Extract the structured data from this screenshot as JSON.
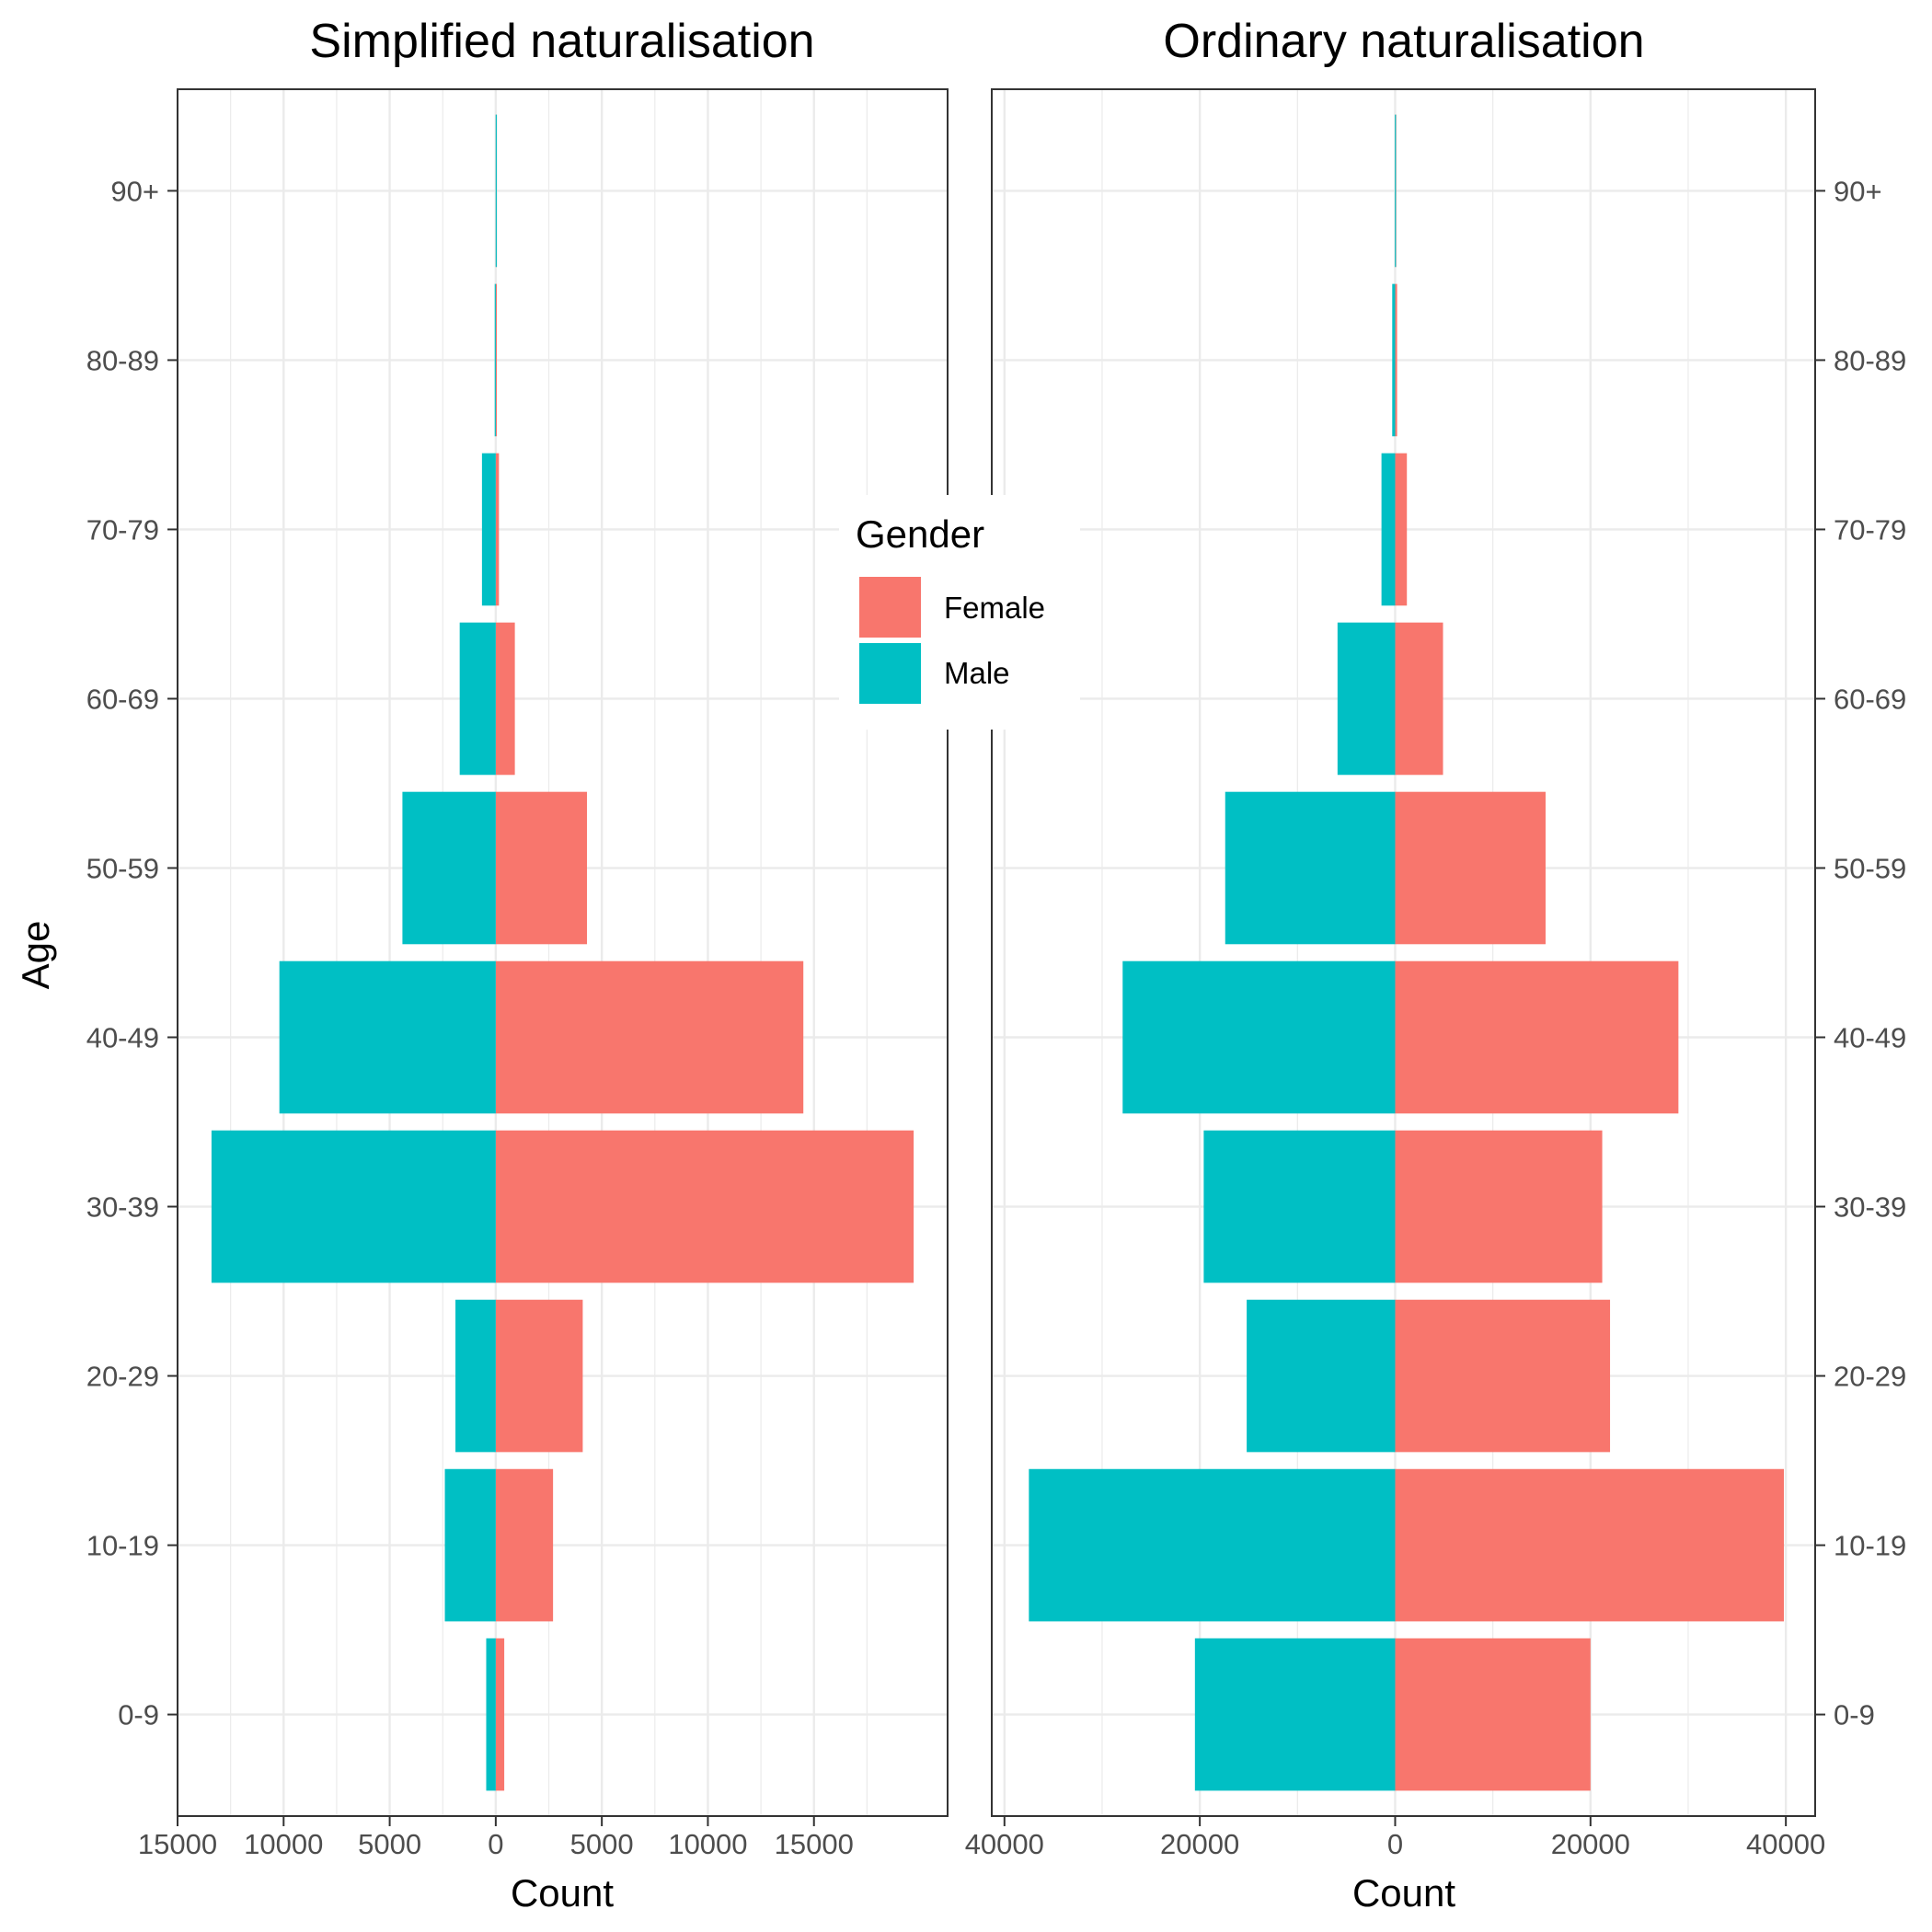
{
  "chart_data": {
    "type": "bar",
    "orientation": "horizontal",
    "y_label": "Age",
    "categories": [
      "0-9",
      "10-19",
      "20-29",
      "30-39",
      "40-49",
      "50-59",
      "60-69",
      "70-79",
      "80-89",
      "90+"
    ],
    "legend": {
      "title": "Gender",
      "placement": "center",
      "items": [
        {
          "label": "Female",
          "color": "#F8766D"
        },
        {
          "label": "Male",
          "color": "#00BFC4"
        }
      ]
    },
    "panels": [
      {
        "title": "Simplified naturalisation",
        "xlabel": "Count",
        "xlim": [
          -15000,
          21300
        ],
        "x_ticks": [
          -15000,
          -10000,
          -5000,
          0,
          5000,
          10000,
          15000
        ],
        "x_tick_labels": [
          "15000",
          "10000",
          "5000",
          "0",
          "5000",
          "10000",
          "15000"
        ],
        "series": [
          {
            "name": "Female",
            "values": [
              400,
              2700,
              4100,
              19700,
              14500,
              4300,
              900,
              150,
              30,
              5
            ]
          },
          {
            "name": "Male",
            "values": [
              -450,
              -2400,
              -1900,
              -13400,
              -10200,
              -4400,
              -1700,
              -650,
              -50,
              -5
            ]
          }
        ]
      },
      {
        "title": "Ordinary naturalisation",
        "xlabel": "Count",
        "xlim": [
          -41300,
          43000
        ],
        "x_ticks": [
          -40000,
          -20000,
          0,
          20000,
          40000
        ],
        "x_tick_labels": [
          "40000",
          "20000",
          "0",
          "20000",
          "40000"
        ],
        "series": [
          {
            "name": "Female",
            "values": [
              20000,
              39800,
              22000,
              21200,
              29000,
              15400,
              4900,
              1200,
              200,
              30
            ]
          },
          {
            "name": "Male",
            "values": [
              -20500,
              -37500,
              -15200,
              -19600,
              -27900,
              -17400,
              -5900,
              -1400,
              -300,
              -30
            ]
          }
        ]
      }
    ]
  }
}
